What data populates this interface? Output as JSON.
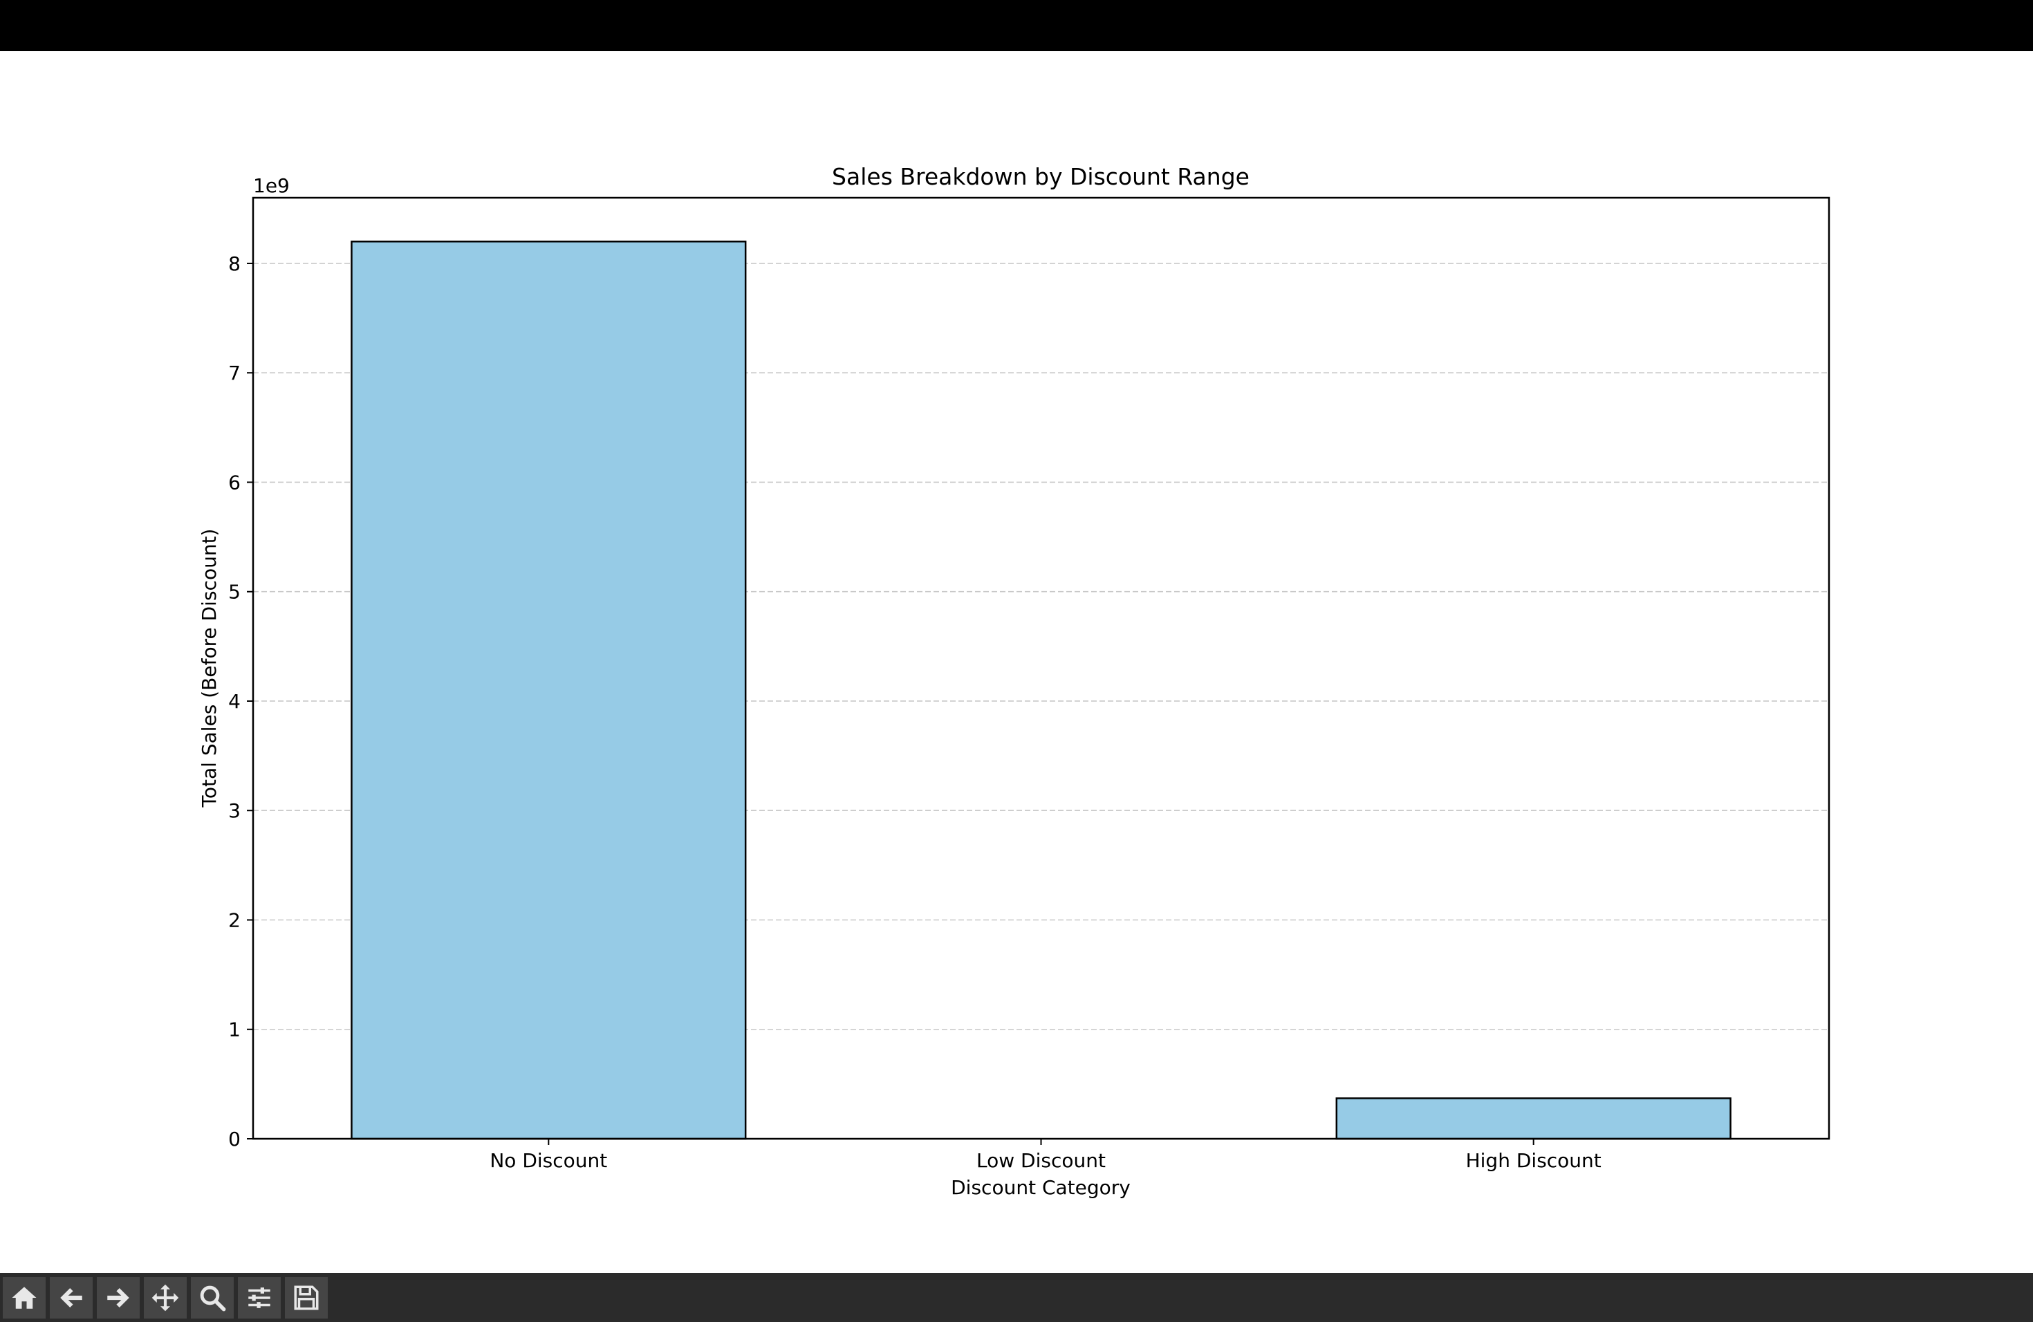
{
  "chart_data": {
    "type": "bar",
    "title": "Sales Breakdown by Discount Range",
    "xlabel": "Discount Category",
    "ylabel": "Total Sales (Before Discount)",
    "y_offset_label": "1e9",
    "categories": [
      "No Discount",
      "Low Discount",
      "High Discount"
    ],
    "values": [
      8200000000.0,
      0,
      370000000.0
    ],
    "ylim": [
      0,
      8600000000.0
    ],
    "yticks": [
      0,
      1,
      2,
      3,
      4,
      5,
      6,
      7,
      8
    ],
    "ytick_scale": 1000000000.0,
    "grid": "y-dashed",
    "bar_color": "#96cbe6",
    "edge_color": "#000000",
    "grid_color": "#c8c8c8"
  },
  "toolbar": {
    "buttons": [
      {
        "name": "home-button",
        "icon": "home-icon"
      },
      {
        "name": "back-button",
        "icon": "arrow-left-icon"
      },
      {
        "name": "forward-button",
        "icon": "arrow-right-icon"
      },
      {
        "name": "pan-button",
        "icon": "move-icon"
      },
      {
        "name": "zoom-button",
        "icon": "magnifier-icon"
      },
      {
        "name": "configure-subplots-button",
        "icon": "sliders-icon"
      },
      {
        "name": "save-button",
        "icon": "floppy-disk-icon"
      }
    ]
  }
}
